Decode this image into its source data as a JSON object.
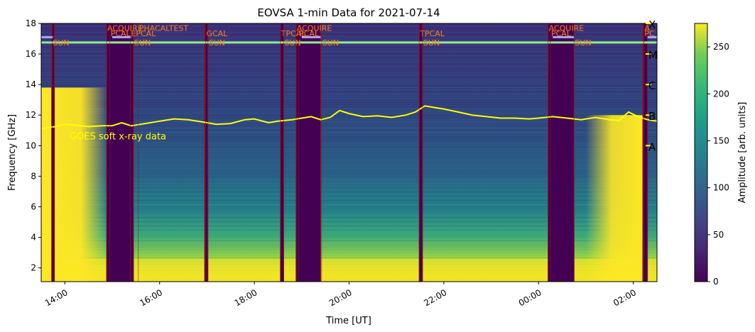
{
  "chart_data": {
    "type": "heatmap",
    "title": "EOVSA 1-min Data for 2021-07-14",
    "xlabel": "Time [UT]",
    "ylabel": "Frequency [GHz]",
    "colorbar_label": "Amplitude [arb. units]",
    "colormap": "viridis",
    "xlim_hours": [
      13.5,
      26.5
    ],
    "ylim": [
      1.1,
      18
    ],
    "clim": [
      0,
      275
    ],
    "x_ticks": [
      {
        "label": "14:00",
        "hour": 14
      },
      {
        "label": "16:00",
        "hour": 16
      },
      {
        "label": "18:00",
        "hour": 18
      },
      {
        "label": "20:00",
        "hour": 20
      },
      {
        "label": "22:00",
        "hour": 22
      },
      {
        "label": "00:00",
        "hour": 24
      },
      {
        "label": "02:00",
        "hour": 26
      }
    ],
    "y_ticks": [
      {
        "label": "2",
        "value": 2
      },
      {
        "label": "4",
        "value": 4
      },
      {
        "label": "6",
        "value": 6
      },
      {
        "label": "8",
        "value": 8
      },
      {
        "label": "10",
        "value": 10
      },
      {
        "label": "12",
        "value": 12
      },
      {
        "label": "14",
        "value": 14
      },
      {
        "label": "16",
        "value": 16
      },
      {
        "label": "18",
        "value": 18
      }
    ],
    "colorbar_ticks": [
      {
        "label": "0",
        "value": 0
      },
      {
        "label": "50",
        "value": 50
      },
      {
        "label": "100",
        "value": 100
      },
      {
        "label": "150",
        "value": 150
      },
      {
        "label": "200",
        "value": 200
      },
      {
        "label": "250",
        "value": 250
      }
    ],
    "goes_class_ticks": [
      {
        "label": "X",
        "value": 18
      },
      {
        "label": "M",
        "value": 16
      },
      {
        "label": "C",
        "value": 14
      },
      {
        "label": "B",
        "value": 12
      },
      {
        "label": "A",
        "value": 10
      }
    ],
    "goes_label": "GOES soft x-ray data",
    "goes_label_pos": {
      "hour": 14.1,
      "freq": 10.4
    },
    "goes_curve": [
      [
        13.5,
        11.1
      ],
      [
        13.8,
        11.25
      ],
      [
        14.0,
        11.4
      ],
      [
        14.2,
        11.35
      ],
      [
        14.5,
        11.25
      ],
      [
        14.8,
        11.3
      ],
      [
        15.0,
        11.3
      ],
      [
        15.2,
        11.5
      ],
      [
        15.4,
        11.3
      ],
      [
        15.7,
        11.45
      ],
      [
        16.0,
        11.6
      ],
      [
        16.3,
        11.75
      ],
      [
        16.6,
        11.7
      ],
      [
        16.9,
        11.55
      ],
      [
        17.2,
        11.4
      ],
      [
        17.5,
        11.45
      ],
      [
        17.8,
        11.7
      ],
      [
        18.0,
        11.75
      ],
      [
        18.3,
        11.5
      ],
      [
        18.5,
        11.6
      ],
      [
        18.8,
        11.7
      ],
      [
        19.0,
        11.8
      ],
      [
        19.2,
        11.9
      ],
      [
        19.4,
        11.7
      ],
      [
        19.6,
        11.85
      ],
      [
        19.8,
        12.3
      ],
      [
        20.0,
        12.1
      ],
      [
        20.3,
        11.9
      ],
      [
        20.6,
        11.95
      ],
      [
        20.9,
        11.85
      ],
      [
        21.2,
        12.0
      ],
      [
        21.4,
        12.2
      ],
      [
        21.6,
        12.6
      ],
      [
        21.8,
        12.5
      ],
      [
        22.0,
        12.4
      ],
      [
        22.3,
        12.2
      ],
      [
        22.6,
        12.0
      ],
      [
        22.9,
        11.9
      ],
      [
        23.2,
        11.8
      ],
      [
        23.5,
        11.8
      ],
      [
        23.8,
        11.75
      ],
      [
        24.0,
        11.8
      ],
      [
        24.3,
        11.9
      ],
      [
        24.6,
        11.8
      ],
      [
        24.9,
        11.7
      ],
      [
        25.2,
        11.85
      ],
      [
        25.5,
        11.7
      ],
      [
        25.7,
        11.65
      ],
      [
        25.9,
        12.2
      ],
      [
        26.1,
        11.9
      ],
      [
        26.3,
        11.7
      ],
      [
        26.5,
        11.6
      ]
    ],
    "blocked_intervals": [
      {
        "start": 13.72,
        "end": 13.78
      },
      {
        "start": 14.88,
        "end": 15.45
      },
      {
        "start": 16.95,
        "end": 17.02
      },
      {
        "start": 18.55,
        "end": 18.62
      },
      {
        "start": 18.88,
        "end": 19.4
      },
      {
        "start": 21.48,
        "end": 21.55
      },
      {
        "start": 24.2,
        "end": 24.75
      },
      {
        "start": 26.2,
        "end": 26.3
      }
    ],
    "scan_markers": [
      {
        "label": "SUN",
        "hour": 13.73,
        "freq": 16.75,
        "row": "sun"
      },
      {
        "label": "ACQUIRE",
        "hour": 14.88,
        "freq": 17.7,
        "row": "acq"
      },
      {
        "label": "PCAL",
        "hour": 14.95,
        "freq": 17.35,
        "row": "pcal"
      },
      {
        "label": "EPCAL",
        "hour": 15.38,
        "freq": 17.35,
        "row": "pcal"
      },
      {
        "label": "SUN",
        "hour": 15.45,
        "freq": 16.75,
        "row": "sun"
      },
      {
        "label": "PHACALTEST",
        "hour": 15.55,
        "freq": 17.7,
        "row": "acq"
      },
      {
        "label": "GCAL",
        "hour": 16.97,
        "freq": 17.35,
        "row": "pcal"
      },
      {
        "label": "SUN",
        "hour": 17.02,
        "freq": 16.75,
        "row": "sun"
      },
      {
        "label": "TPCAL",
        "hour": 18.55,
        "freq": 17.35,
        "row": "pcal"
      },
      {
        "label": "SUN",
        "hour": 18.62,
        "freq": 16.75,
        "row": "sun"
      },
      {
        "label": "ACQUIRE",
        "hour": 18.88,
        "freq": 17.7,
        "row": "acq"
      },
      {
        "label": "PCAL",
        "hour": 18.93,
        "freq": 17.35,
        "row": "pcal"
      },
      {
        "label": "SUN",
        "hour": 19.42,
        "freq": 16.75,
        "row": "sun"
      },
      {
        "label": "TPCAL",
        "hour": 21.48,
        "freq": 17.35,
        "row": "pcal"
      },
      {
        "label": "SUN",
        "hour": 21.55,
        "freq": 16.75,
        "row": "sun"
      },
      {
        "label": "ACQUIRE",
        "hour": 24.2,
        "freq": 17.7,
        "row": "acq"
      },
      {
        "label": "PCAL",
        "hour": 24.25,
        "freq": 17.35,
        "row": "pcal"
      },
      {
        "label": "SUN",
        "hour": 24.75,
        "freq": 16.75,
        "row": "sun"
      },
      {
        "label": "A",
        "hour": 26.22,
        "freq": 17.7,
        "row": "acq"
      },
      {
        "label": "PC",
        "hour": 26.22,
        "freq": 17.35,
        "row": "pcal"
      }
    ],
    "colors": {
      "marker_text": "#ff7f0e",
      "goes_curve": "#ffff00",
      "goes_label": "#ffff00",
      "sun_line": "#90ee90",
      "pcal_line": "#a9a9f5",
      "interval_edge": "#8b1a1a",
      "blocked_fill": "#440154"
    }
  }
}
